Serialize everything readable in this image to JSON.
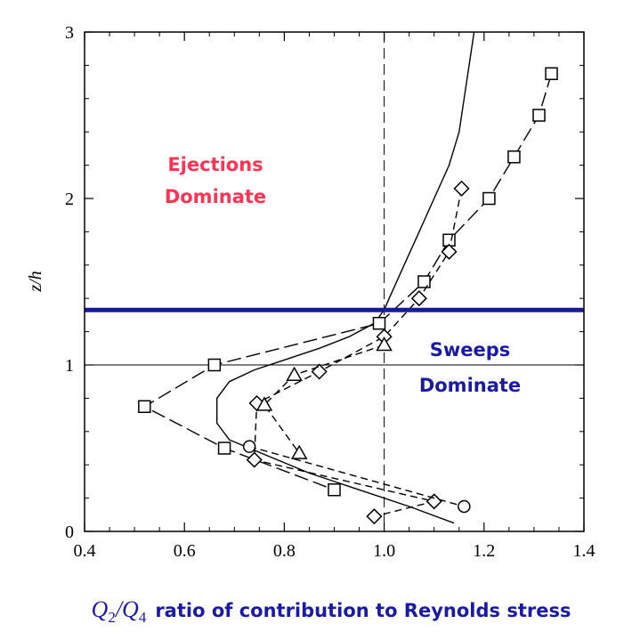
{
  "chart_data": {
    "type": "line",
    "xlim": [
      0.4,
      1.4
    ],
    "ylim": [
      0,
      3
    ],
    "xticks": [
      "0.4",
      "0.6",
      "0.8",
      "1.0",
      "1.2",
      "1.4"
    ],
    "yticks": [
      "0",
      "1",
      "2",
      "3"
    ],
    "ylabel": "z/h",
    "xlabel": {
      "q": "Q",
      "sub2": "2",
      "slash": "/",
      "sub4": "4",
      "text": "ratio of contribution to Reynolds stress"
    },
    "annotations": {
      "ejections_line1": "Ejections",
      "ejections_line2": "Dominate",
      "sweeps_line1": "Sweeps",
      "sweeps_line2": "Dominate"
    },
    "reference_lines": {
      "vertical_dashed_x": 1.0,
      "horizontal_solid_y": 1.0,
      "horizontal_thick_y": 1.33
    },
    "colors": {
      "ejections": "#ff3355",
      "sweeps": "#1a1aa6",
      "thick_line": "#1a1a99"
    },
    "series": [
      {
        "marker": "none",
        "style": "solid",
        "points": [
          [
            1.14,
            0.05
          ],
          [
            1.05,
            0.15
          ],
          [
            0.95,
            0.25
          ],
          [
            0.85,
            0.35
          ],
          [
            0.77,
            0.45
          ],
          [
            0.69,
            0.55
          ],
          [
            0.665,
            0.65
          ],
          [
            0.665,
            0.8
          ],
          [
            0.69,
            0.9
          ],
          [
            0.74,
            0.97
          ],
          [
            0.8,
            1.03
          ],
          [
            0.87,
            1.1
          ],
          [
            0.93,
            1.17
          ],
          [
            0.98,
            1.25
          ],
          [
            1.0,
            1.33
          ],
          [
            1.01,
            1.4
          ],
          [
            1.04,
            1.6
          ],
          [
            1.07,
            1.8
          ],
          [
            1.1,
            2.0
          ],
          [
            1.13,
            2.2
          ],
          [
            1.15,
            2.4
          ],
          [
            1.16,
            2.6
          ],
          [
            1.17,
            2.8
          ],
          [
            1.18,
            3.0
          ]
        ]
      },
      {
        "marker": "square",
        "style": "longdash",
        "points": [
          [
            1.335,
            2.75
          ],
          [
            1.31,
            2.5
          ],
          [
            1.26,
            2.25
          ],
          [
            1.21,
            2.0
          ],
          [
            1.13,
            1.75
          ],
          [
            1.08,
            1.5
          ],
          [
            0.99,
            1.25
          ],
          [
            0.66,
            1.0
          ],
          [
            0.52,
            0.75
          ],
          [
            0.68,
            0.5
          ],
          [
            0.9,
            0.25
          ]
        ]
      },
      {
        "marker": "diamond",
        "style": "dash",
        "points": [
          [
            1.155,
            2.06
          ],
          [
            1.13,
            1.68
          ],
          [
            1.07,
            1.4
          ],
          [
            1.0,
            1.17
          ],
          [
            0.87,
            0.96
          ],
          [
            0.745,
            0.77
          ],
          [
            0.74,
            0.43
          ],
          [
            1.1,
            0.18
          ],
          [
            0.98,
            0.09
          ]
        ]
      },
      {
        "marker": "triangle",
        "style": "dash",
        "points": [
          [
            1.0,
            1.12
          ],
          [
            0.82,
            0.94
          ],
          [
            0.76,
            0.76
          ],
          [
            0.83,
            0.47
          ]
        ]
      },
      {
        "marker": "circle",
        "style": "dash",
        "points": [
          [
            0.73,
            0.51
          ],
          [
            1.16,
            0.15
          ]
        ]
      }
    ]
  }
}
